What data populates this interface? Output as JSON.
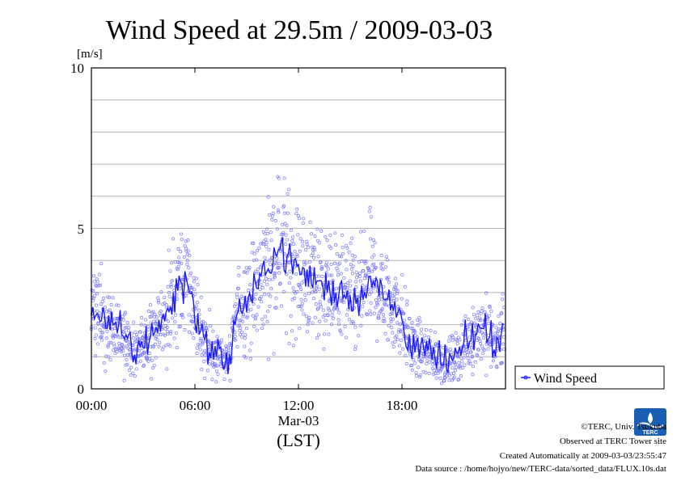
{
  "chart_data": {
    "type": "scatter",
    "title": "Wind Speed at 29.5m / 2009-03-03",
    "ylabel": "[m/s]",
    "xlabel": "(LST)",
    "date_label": "Mar-03",
    "ylim": [
      0,
      10
    ],
    "xlim": [
      "2009-03-03 00:00",
      "2009-03-04 00:00"
    ],
    "y_ticks": [
      "0",
      "5",
      "10"
    ],
    "y_grid": [
      1,
      2,
      3,
      4,
      5,
      6,
      7,
      8,
      9
    ],
    "x_ticks": [
      "00:00",
      "06:00",
      "12:00",
      "18:00"
    ],
    "grid": true,
    "legend": {
      "label": "Wind Speed",
      "placement": "right"
    },
    "series": [
      {
        "name": "Wind Speed",
        "color": "#1a1aff",
        "x": [
          "00:00",
          "00:30",
          "01:00",
          "01:30",
          "02:00",
          "02:30",
          "03:00",
          "03:30",
          "04:00",
          "04:30",
          "05:00",
          "05:30",
          "06:00",
          "06:30",
          "07:00",
          "07:30",
          "08:00",
          "08:30",
          "09:00",
          "09:30",
          "10:00",
          "10:30",
          "11:00",
          "11:30",
          "12:00",
          "12:30",
          "13:00",
          "13:30",
          "14:00",
          "14:30",
          "15:00",
          "15:30",
          "16:00",
          "16:30",
          "17:00",
          "17:30",
          "18:00",
          "18:30",
          "19:00",
          "19:30",
          "20:00",
          "20:30",
          "21:00",
          "21:30",
          "22:00",
          "22:30",
          "23:00",
          "23:30",
          "23:55"
        ],
        "values": [
          2.6,
          2.3,
          2.0,
          1.8,
          1.6,
          1.1,
          1.4,
          1.8,
          2.0,
          2.4,
          3.2,
          3.4,
          2.5,
          1.5,
          1.2,
          1.0,
          0.9,
          2.5,
          2.7,
          3.0,
          3.6,
          4.2,
          4.4,
          4.0,
          3.7,
          3.5,
          3.4,
          3.2,
          3.0,
          3.1,
          2.9,
          2.7,
          3.5,
          3.2,
          2.8,
          2.6,
          2.2,
          1.4,
          1.2,
          1.1,
          1.0,
          0.8,
          0.9,
          1.2,
          1.6,
          1.9,
          1.7,
          1.4,
          1.9
        ]
      }
    ],
    "scatter_color": "#7777ff"
  },
  "credits": {
    "line1": "©TERC, Univ. Tsukuba",
    "line2": "Observed at TERC Tower site",
    "line3": "Created Automatically at 2009-03-03/23:55:47",
    "line4": "Data source : /home/hojyo/new/TERC-data/sorted_data/FLUX.10s.dat",
    "logo_text": "TERC",
    "logo_color": "#1a5fb4"
  }
}
